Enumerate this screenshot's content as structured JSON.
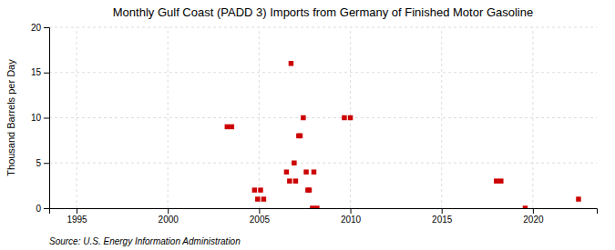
{
  "chart_data": {
    "type": "scatter",
    "title": "Monthly Gulf Coast (PADD 3) Imports from Germany of Finished Motor Gasoline",
    "ylabel": "Thousand Barrels per Day",
    "annotation": "Source: U.S. Energy Information Administration",
    "color": "#cc0000",
    "marker": "square",
    "x": [
      2003.25,
      2003.5,
      2004.75,
      2004.92,
      2005.08,
      2005.25,
      2006.5,
      2006.67,
      2006.75,
      2006.92,
      2007.0,
      2007.17,
      2007.25,
      2007.42,
      2007.58,
      2007.67,
      2007.75,
      2007.92,
      2008.0,
      2008.17,
      2009.67,
      2010.0,
      2018.0,
      2018.25,
      2019.58,
      2022.5
    ],
    "values": [
      9,
      9,
      2,
      1,
      2,
      1,
      4,
      3,
      16,
      5,
      3,
      8,
      8,
      10,
      4,
      2,
      2,
      0,
      4,
      0,
      10,
      10,
      3,
      3,
      0,
      1
    ],
    "xlim": [
      1993.5,
      2023.5
    ],
    "ylim": [
      0,
      20
    ],
    "xticks": [
      1995,
      2000,
      2005,
      2010,
      2015,
      2020
    ],
    "yticks": [
      0,
      5,
      10,
      15,
      20
    ],
    "grid": true
  }
}
